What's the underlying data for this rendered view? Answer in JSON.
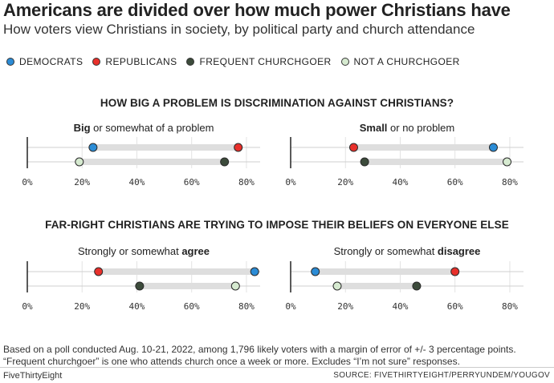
{
  "title": "Americans are divided over how much power Christians have",
  "subtitle": "How voters view Christians in society, by political party and church attendance",
  "legend": [
    {
      "label": "DEMOCRATS",
      "color": "#2b8cd6"
    },
    {
      "label": "REPUBLICANS",
      "color": "#e8302b"
    },
    {
      "label": "FREQUENT CHURCHGOER",
      "color": "#3c4b3b"
    },
    {
      "label": "NOT A CHURCHGOER",
      "color": "#d6ead0"
    }
  ],
  "sections": [
    {
      "heading": "HOW BIG A PROBLEM IS DISCRIMINATION AGAINST CHRISTIANS?"
    },
    {
      "heading": "FAR-RIGHT CHRISTIANS ARE TRYING TO IMPOSE THEIR BELIEFS ON EVERYONE ELSE"
    }
  ],
  "panel_titles": [
    {
      "bold": "Big",
      "rest": " or somewhat of a problem"
    },
    {
      "bold": "Small",
      "rest": " or no problem"
    },
    {
      "pre": "Strongly or somewhat ",
      "bold": "agree"
    },
    {
      "pre": "Strongly or somewhat ",
      "bold": "disagree"
    }
  ],
  "chart_data": [
    {
      "type": "dot",
      "title": "Big or somewhat of a problem",
      "xlim": [
        0,
        85
      ],
      "ticks": [
        "0%",
        "20%",
        "40%",
        "60%",
        "80%"
      ],
      "rows": [
        {
          "points": [
            {
              "series": "DEMOCRATS",
              "value": 24
            },
            {
              "series": "REPUBLICANS",
              "value": 77
            }
          ]
        },
        {
          "points": [
            {
              "series": "NOT A CHURCHGOER",
              "value": 19
            },
            {
              "series": "FREQUENT CHURCHGOER",
              "value": 72
            }
          ]
        }
      ]
    },
    {
      "type": "dot",
      "title": "Small or no problem",
      "xlim": [
        0,
        85
      ],
      "ticks": [
        "0%",
        "20%",
        "40%",
        "60%",
        "80%"
      ],
      "rows": [
        {
          "points": [
            {
              "series": "REPUBLICANS",
              "value": 23
            },
            {
              "series": "DEMOCRATS",
              "value": 74
            }
          ]
        },
        {
          "points": [
            {
              "series": "FREQUENT CHURCHGOER",
              "value": 27
            },
            {
              "series": "NOT A CHURCHGOER",
              "value": 79
            }
          ]
        }
      ]
    },
    {
      "type": "dot",
      "title": "Strongly or somewhat agree",
      "xlim": [
        0,
        85
      ],
      "ticks": [
        "0%",
        "20%",
        "40%",
        "60%",
        "80%"
      ],
      "rows": [
        {
          "points": [
            {
              "series": "REPUBLICANS",
              "value": 26
            },
            {
              "series": "DEMOCRATS",
              "value": 83
            }
          ]
        },
        {
          "points": [
            {
              "series": "FREQUENT CHURCHGOER",
              "value": 41
            },
            {
              "series": "NOT A CHURCHGOER",
              "value": 76
            }
          ]
        }
      ]
    },
    {
      "type": "dot",
      "title": "Strongly or somewhat disagree",
      "xlim": [
        0,
        85
      ],
      "ticks": [
        "0%",
        "20%",
        "40%",
        "60%",
        "80%"
      ],
      "rows": [
        {
          "points": [
            {
              "series": "DEMOCRATS",
              "value": 9
            },
            {
              "series": "REPUBLICANS",
              "value": 60
            }
          ]
        },
        {
          "points": [
            {
              "series": "NOT A CHURCHGOER",
              "value": 17
            },
            {
              "series": "FREQUENT CHURCHGOER",
              "value": 46
            }
          ]
        }
      ]
    }
  ],
  "notes": [
    "Based on a poll conducted Aug. 10-21, 2022, among 1,796 likely voters with a margin of error of +/- 3 percentage points.",
    "“Frequent churchgoer” is one who attends church once a week or more.  Excludes “I’m not sure” responses."
  ],
  "brand": "FiveThirtyEight",
  "source": "SOURCE: FIVETHIRTYEIGHT/PERRYUNDEM/YOUGOV"
}
